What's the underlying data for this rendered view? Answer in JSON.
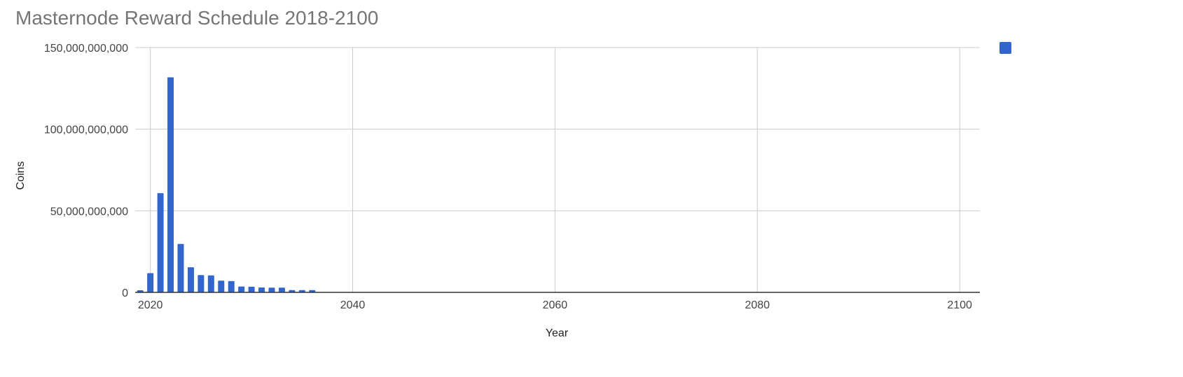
{
  "chart_data": {
    "type": "bar",
    "title": "Masternode Reward Schedule 2018-2100",
    "xlabel": "Year",
    "ylabel": "Coins",
    "xlim": [
      2018.5,
      2102
    ],
    "ylim": [
      0,
      150000000000
    ],
    "x_ticks": [
      2020,
      2040,
      2060,
      2080,
      2100
    ],
    "x_tick_labels": [
      "2020",
      "2040",
      "2060",
      "2080",
      "2100"
    ],
    "y_ticks": [
      0,
      50000000000,
      100000000000,
      150000000000
    ],
    "y_tick_labels": [
      "0",
      "50,000,000,000",
      "100,000,000,000",
      "150,000,000,000"
    ],
    "grid": true,
    "legend": "top-right",
    "series": [
      {
        "color": "#3366cc",
        "x": [
          2019,
          2020,
          2021,
          2022,
          2023,
          2024,
          2025,
          2026,
          2027,
          2028,
          2029,
          2030,
          2031,
          2032,
          2033,
          2034,
          2035,
          2036
        ],
        "values": [
          1300000000,
          11800000000,
          60800000000,
          131800000000,
          29700000000,
          15400000000,
          10600000000,
          10400000000,
          7200000000,
          6900000000,
          3600000000,
          3500000000,
          3000000000,
          2900000000,
          2900000000,
          1400000000,
          1400000000,
          1400000000
        ]
      }
    ]
  }
}
